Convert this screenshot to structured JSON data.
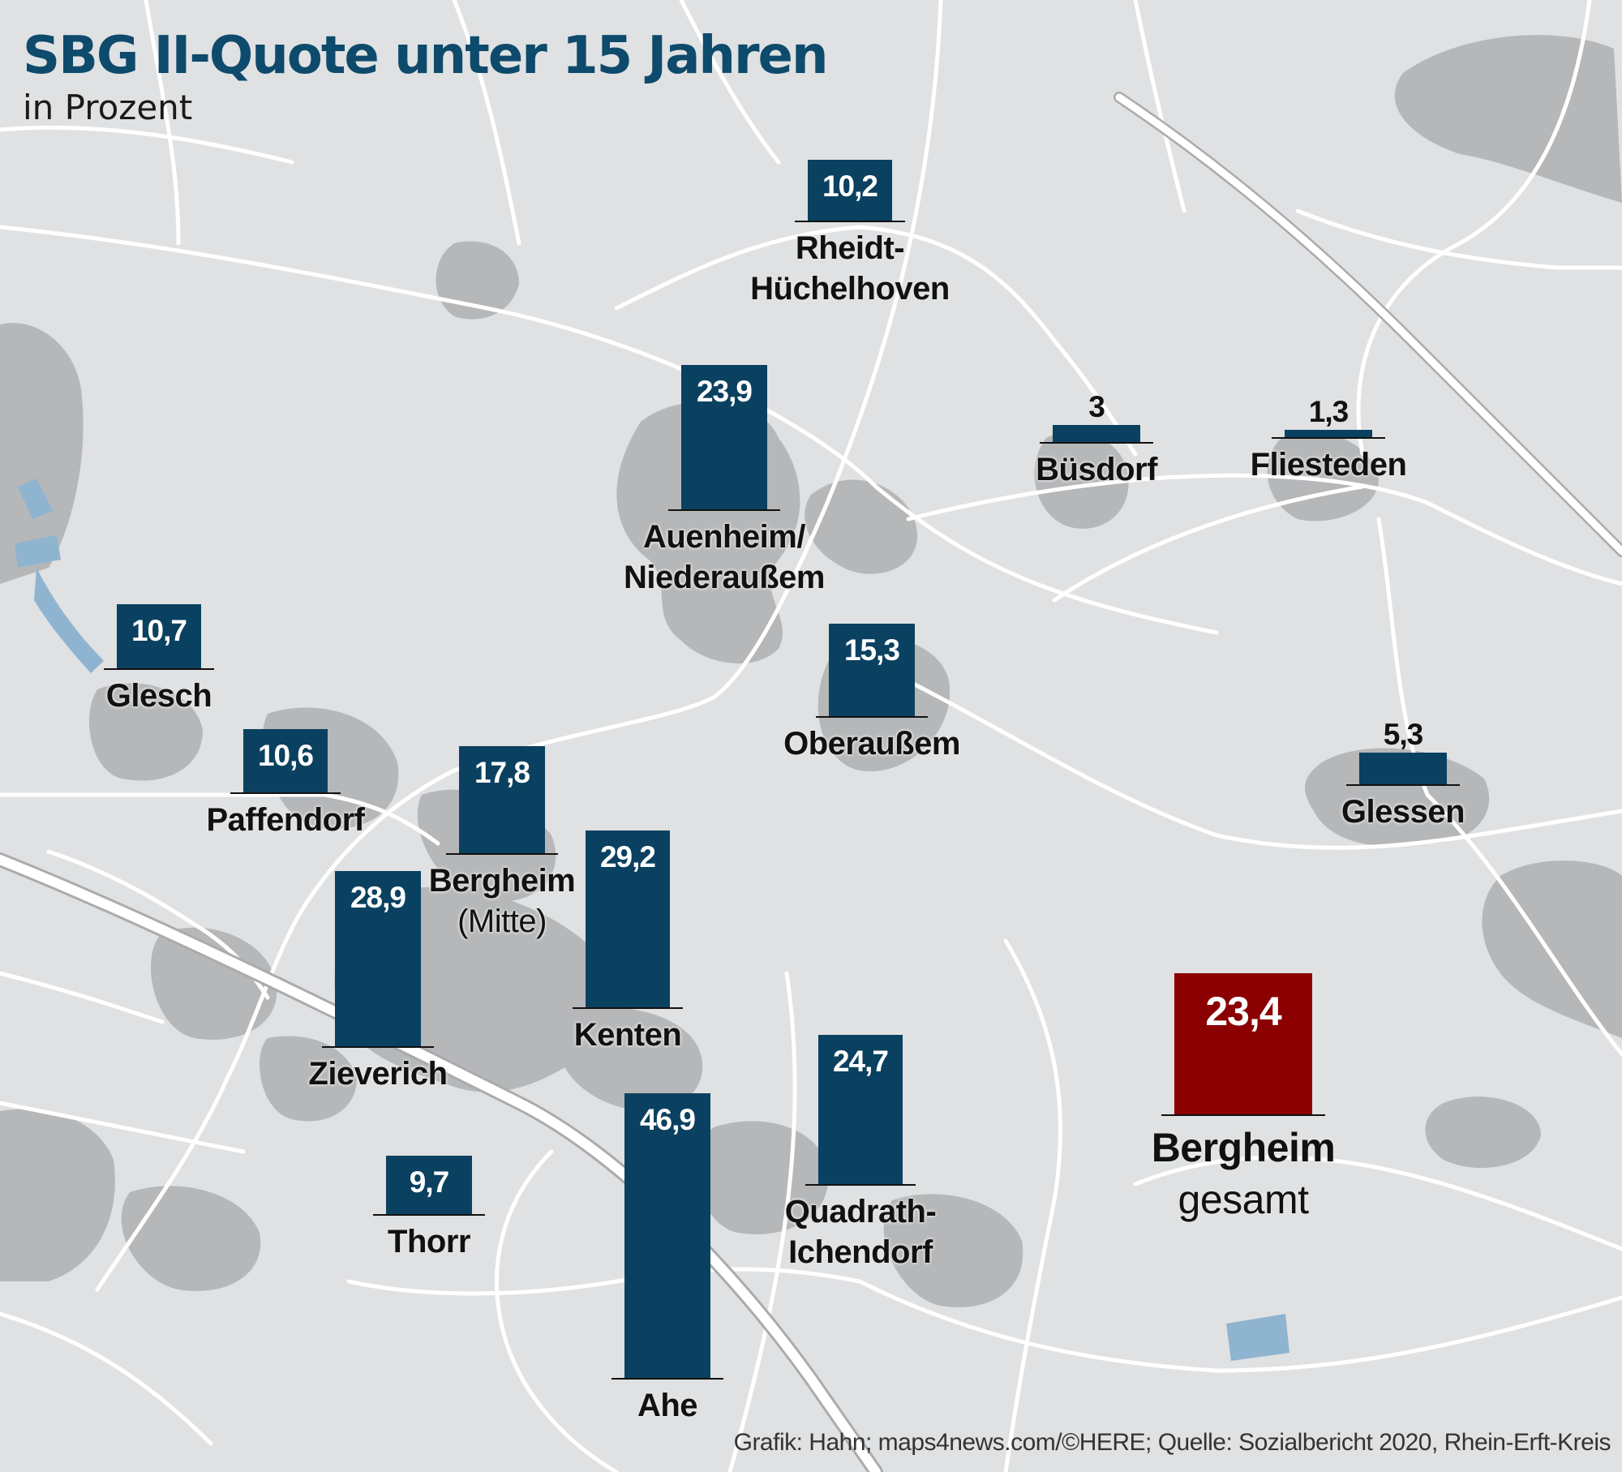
{
  "title": "SBG II-Quote unter 15 Jahren",
  "subtitle": "in Prozent",
  "credit": "Grafik: Hahn; maps4news.com/©HERE; Quelle: Sozialbericht 2020, Rhein-Erft-Kreis",
  "colors": {
    "district_bar": "#0b4160",
    "total_bar": "#8b0000",
    "title": "#0e4a6b",
    "map_background": "#dfe1e3",
    "settlement": "#b5b7b9",
    "road": "#ffffff",
    "water": "#8fb4d0"
  },
  "chart_data": {
    "type": "bar",
    "title": "SBG II-Quote unter 15 Jahren",
    "unit": "in Prozent",
    "series": [
      {
        "name": "Glesch",
        "value": 10.7,
        "label": "10,7"
      },
      {
        "name": "Paffendorf",
        "value": 10.6,
        "label": "10,6"
      },
      {
        "name": "Bergheim",
        "name2": "(Mitte)",
        "value": 17.8,
        "label": "17,8"
      },
      {
        "name": "Zieverich",
        "value": 28.9,
        "label": "28,9"
      },
      {
        "name": "Thorr",
        "value": 9.7,
        "label": "9,7"
      },
      {
        "name": "Kenten",
        "value": 29.2,
        "label": "29,2"
      },
      {
        "name": "Ahe",
        "value": 46.9,
        "label": "46,9"
      },
      {
        "name": "Quadrath-",
        "name2": "Ichendorf",
        "value": 24.7,
        "label": "24,7"
      },
      {
        "name": "Auenheim/",
        "name2": "Niederaußem",
        "value": 23.9,
        "label": "23,9"
      },
      {
        "name": "Rheidt-",
        "name2": "Hüchelhoven",
        "value": 10.2,
        "label": "10,2"
      },
      {
        "name": "Oberaußem",
        "value": 15.3,
        "label": "15,3"
      },
      {
        "name": "Büsdorf",
        "value": 3,
        "label": "3"
      },
      {
        "name": "Fliesteden",
        "value": 1.3,
        "label": "1,3"
      },
      {
        "name": "Glessen",
        "value": 5.3,
        "label": "5,3"
      }
    ],
    "total": {
      "name": "Bergheim",
      "name2": "gesamt",
      "value": 23.4,
      "label": "23,4"
    }
  }
}
